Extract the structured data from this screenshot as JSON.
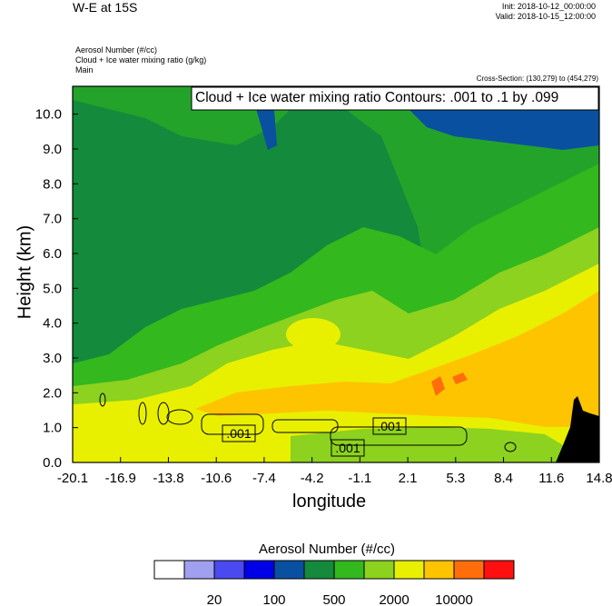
{
  "header": {
    "title": "W-E at 15S",
    "init": "Init: 2018-10-12_00:00:00",
    "valid": "Valid: 2018-10-15_12:00:00",
    "field1": "Aerosol Number   (#/cc)",
    "field2": "Cloud + Ice water mixing ratio   (g/kg)",
    "field3": "Main",
    "cross_section": "Cross-Section: (130,279) to (454,279)"
  },
  "chart_data": {
    "type": "heatmap",
    "title": "W-E at 15S",
    "contour_label": "Cloud + Ice water mixing ratio Contours: .001 to .1 by .099",
    "xlabel": "longitude",
    "ylabel": "Height (km)",
    "x_ticks": [
      "-20.1",
      "-16.9",
      "-13.8",
      "-10.6",
      "-7.4",
      "-4.2",
      "-1.1",
      "2.1",
      "5.3",
      "8.4",
      "11.6",
      "14.8"
    ],
    "y_ticks": [
      "0.0",
      "1.0",
      "2.0",
      "3.0",
      "4.0",
      "5.0",
      "6.0",
      "7.0",
      "8.0",
      "9.0",
      "10.0"
    ],
    "xlim": [
      -20.1,
      14.8
    ],
    "ylim": [
      0,
      10.8
    ],
    "contour_value_labels": [
      ".001",
      ".001",
      ".001"
    ],
    "colorbar": {
      "title": "Aerosol Number  (#/cc)",
      "tick_labels": [
        "20",
        "100",
        "500",
        "2000",
        "10000"
      ],
      "colors": [
        "#ffffff",
        "#a0a0f0",
        "#4a4af0",
        "#0000e8",
        "#0a50a0",
        "#138a3c",
        "#33b81e",
        "#8cd21e",
        "#e8f000",
        "#ffc400",
        "#ff6e0a",
        "#ff1010"
      ]
    }
  }
}
